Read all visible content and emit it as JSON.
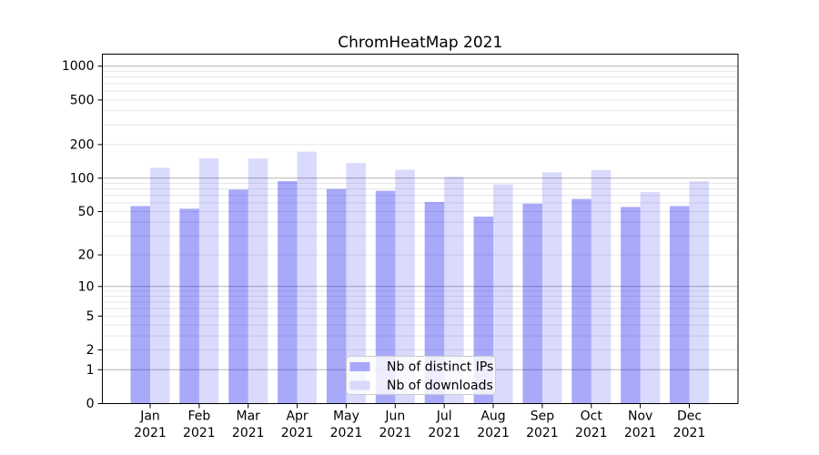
{
  "title": "ChromHeatMap 2021",
  "chart_data": {
    "type": "bar",
    "title": "ChromHeatMap 2021",
    "categories": [
      "Jan 2021",
      "Feb 2021",
      "Mar 2021",
      "Apr 2021",
      "May 2021",
      "Jun 2021",
      "Jul 2021",
      "Aug 2021",
      "Sep 2021",
      "Oct 2021",
      "Nov 2021",
      "Dec 2021"
    ],
    "month_labels": [
      "Jan",
      "Feb",
      "Mar",
      "Apr",
      "May",
      "Jun",
      "Jul",
      "Aug",
      "Sep",
      "Oct",
      "Nov",
      "Dec"
    ],
    "year_label": "2021",
    "series": [
      {
        "name": "Nb of distinct IPs",
        "color": "#a8a8fa",
        "fill": "rgba(10,10,240,0.35)",
        "values": [
          56,
          53,
          79,
          94,
          80,
          77,
          61,
          45,
          59,
          65,
          55,
          56
        ]
      },
      {
        "name": "Nb of downloads",
        "color": "#d9d9fa",
        "fill": "rgba(10,10,240,0.15)",
        "values": [
          124,
          151,
          150,
          173,
          137,
          119,
          103,
          88,
          113,
          118,
          75,
          94
        ]
      }
    ],
    "xlabel": "",
    "ylabel": "",
    "y_axis": {
      "scale": "symlog",
      "ticks": [
        0,
        1,
        2,
        5,
        10,
        20,
        50,
        100,
        200,
        500,
        1000
      ],
      "range": [
        0,
        1000
      ],
      "major_gridlines": [
        1,
        10,
        100,
        1000
      ]
    },
    "grid": {
      "on": true,
      "major_color": "#b3b3b3",
      "minor_color": "#e6e6e6"
    },
    "axis_color": "#000000",
    "legend": {
      "position": "inside lower-center",
      "entries": [
        "Nb of distinct IPs",
        "Nb of downloads"
      ]
    }
  }
}
